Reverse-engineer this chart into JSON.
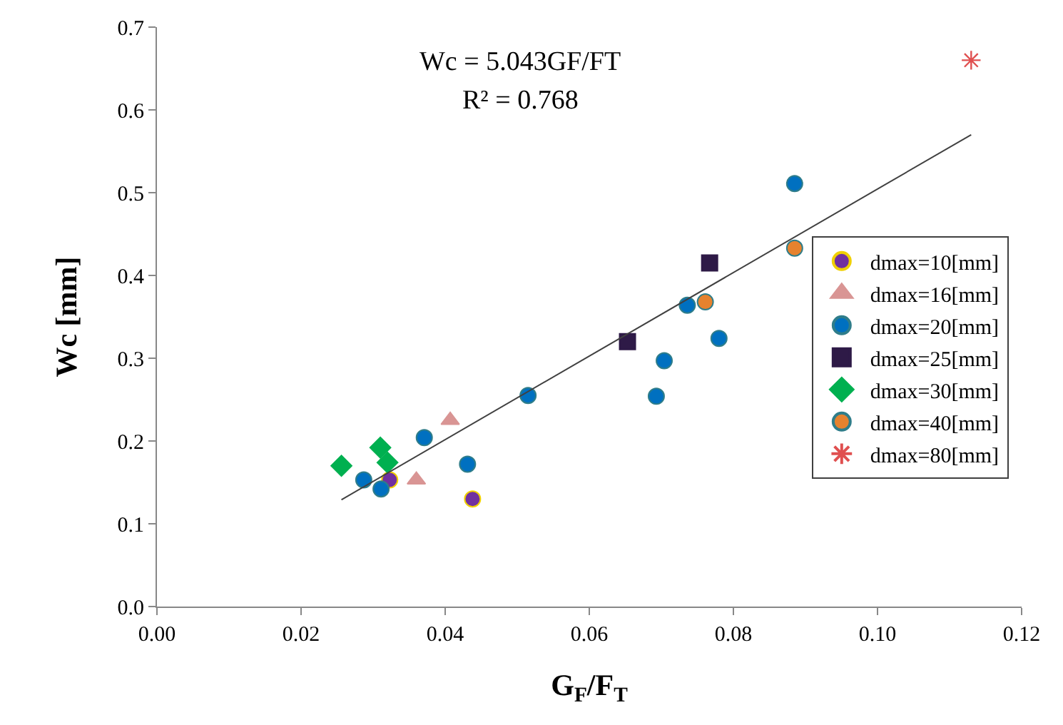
{
  "chart_data": {
    "type": "scatter",
    "xlabel": "G$_{F}$/F$_{T}$",
    "ylabel": "Wc [mm]",
    "annotations": [
      "Wc = 5.043GF/FT",
      "R² = 0.768"
    ],
    "xlim": [
      0,
      0.12
    ],
    "xticks": [
      {
        "value": 0,
        "label": "0.00"
      },
      {
        "value": 0.02,
        "label": "0.02"
      },
      {
        "value": 0.04,
        "label": "0.04"
      },
      {
        "value": 0.06,
        "label": "0.06"
      },
      {
        "value": 0.08,
        "label": "0.08"
      },
      {
        "value": 0.1,
        "label": "0.10"
      },
      {
        "value": 0.12,
        "label": "0.12"
      }
    ],
    "ylim": [
      0,
      0.7
    ],
    "yticks": [
      {
        "value": 0,
        "label": "0.0"
      },
      0.1,
      0.2,
      0.3,
      0.4,
      0.5,
      0.6,
      0.7
    ],
    "grid": false,
    "legend": "right",
    "series": [
      {
        "name": "dmax=10[mm]",
        "color": "#7030a0",
        "marker": "circle",
        "x": [
          0.0323,
          0.0438
        ],
        "values": [
          0.153,
          0.13
        ]
      },
      {
        "name": "dmax=16[mm]",
        "color": "#d99594",
        "marker": "triangle",
        "x": [
          0.0407,
          0.036
        ],
        "values": [
          0.225,
          0.153
        ]
      },
      {
        "name": "dmax=20[mm]",
        "color": "#0070c0",
        "marker": "circle",
        "x": [
          0.0287,
          0.0311,
          0.0371,
          0.0431,
          0.0515,
          0.0693,
          0.0704,
          0.0736,
          0.078,
          0.0885
        ],
        "values": [
          0.153,
          0.142,
          0.204,
          0.172,
          0.255,
          0.254,
          0.297,
          0.364,
          0.324,
          0.511
        ]
      },
      {
        "name": "dmax=25[mm]",
        "color": "#2e1a47",
        "marker": "square",
        "x": [
          0.0653,
          0.0767
        ],
        "values": [
          0.32,
          0.415
        ]
      },
      {
        "name": "dmax=30[mm]",
        "color": "#00b050",
        "marker": "diamond",
        "x": [
          0.0256,
          0.031,
          0.032
        ],
        "values": [
          0.17,
          0.192,
          0.174
        ]
      },
      {
        "name": "dmax=40[mm]",
        "color": "#e6822e",
        "marker": "circle",
        "x": [
          0.0761,
          0.0885
        ],
        "values": [
          0.368,
          0.433
        ]
      },
      {
        "name": "dmax=80[mm]",
        "color": "#e05050",
        "marker": "cross",
        "x": [
          0.113
        ],
        "values": [
          0.66
        ]
      },
      {
        "type": "line",
        "color": "#404040",
        "marker": "none",
        "x": [
          0.0256,
          0.113
        ],
        "values": [
          0.129,
          0.57
        ]
      }
    ]
  }
}
